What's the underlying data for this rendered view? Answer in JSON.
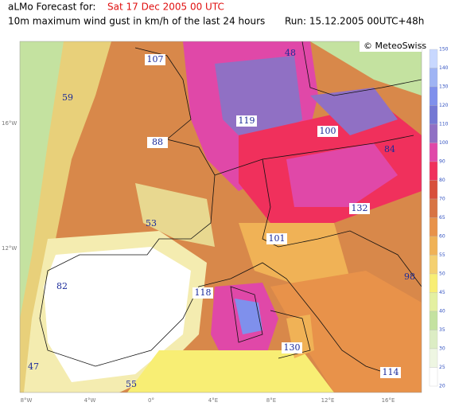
{
  "header": {
    "title_prefix": "aLMo Forecast for:",
    "date": "Sat 17 Dec 2005 00 UTC",
    "subtitle": "10m maximum wind gust in km/h of the last 24 hours",
    "run": "Run: 15.12.2005 00UTC+48h",
    "credit": "© MeteoSwiss"
  },
  "legend": {
    "labels": [
      "150",
      "140",
      "130",
      "120",
      "110",
      "100",
      "90",
      "80",
      "70",
      "65",
      "60",
      "55",
      "50",
      "45",
      "40",
      "35",
      "30",
      "25",
      "20"
    ],
    "colors": [
      "#c8d8ff",
      "#9fb4f4",
      "#7f90ec",
      "#7478d4",
      "#9070c4",
      "#e048a8",
      "#f0305c",
      "#d8503c",
      "#d87444",
      "#e8924a",
      "#f0b256",
      "#f4d070",
      "#f8ee74",
      "#e4f0a0",
      "#c4e2a0",
      "#dcedc4",
      "#eef6e2",
      "#ffffff"
    ]
  },
  "stations": [
    "107",
    "48",
    "59",
    "119",
    "100",
    "88",
    "84",
    "132",
    "53",
    "101",
    "82",
    "98",
    "118",
    "130",
    "47",
    "55",
    "114"
  ],
  "lon_labels": [
    "8°W",
    "4°W",
    "0°",
    "4°E",
    "8°E",
    "12°E",
    "16°E"
  ],
  "lat_labels": [
    "16°W",
    "12°W"
  ]
}
